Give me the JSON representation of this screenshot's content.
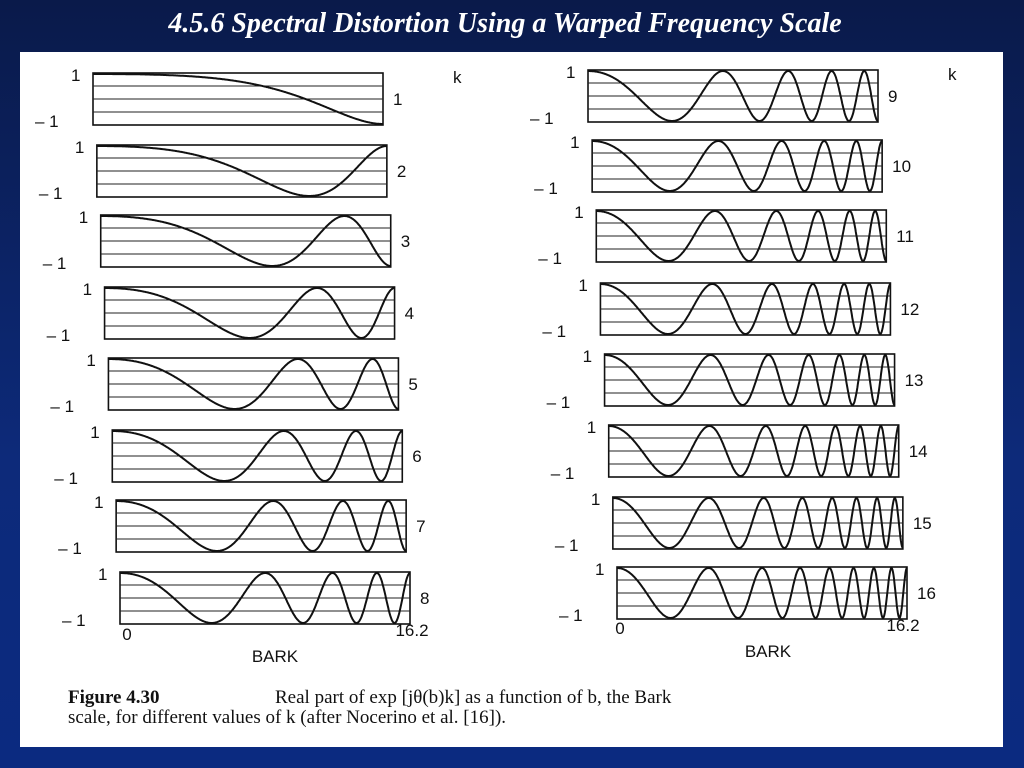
{
  "title": "4.5.6 Spectral Distortion Using a Warped Frequency Scale",
  "figure": {
    "y_max": "1",
    "y_min": "– 1",
    "columns": [
      {
        "k_header": "k",
        "x_min": "0",
        "x_max": "16.2",
        "x_label": "BARK",
        "panels": [
          {
            "k": 1
          },
          {
            "k": 2
          },
          {
            "k": 3
          },
          {
            "k": 4
          },
          {
            "k": 5
          },
          {
            "k": 6
          },
          {
            "k": 7
          },
          {
            "k": 8
          }
        ]
      },
      {
        "k_header": "k",
        "x_min": "0",
        "x_max": "16.2",
        "x_label": "BARK",
        "panels": [
          {
            "k": 9
          },
          {
            "k": 10
          },
          {
            "k": 11
          },
          {
            "k": 12
          },
          {
            "k": 13
          },
          {
            "k": 14
          },
          {
            "k": 15
          },
          {
            "k": 16
          }
        ]
      }
    ]
  },
  "caption": {
    "label": "Figure 4.30",
    "line1": "Real part of exp [jθ(b)k] as a function of b, the Bark",
    "line2": "scale, for different values of k (after Nocerino et al. [16])."
  }
}
